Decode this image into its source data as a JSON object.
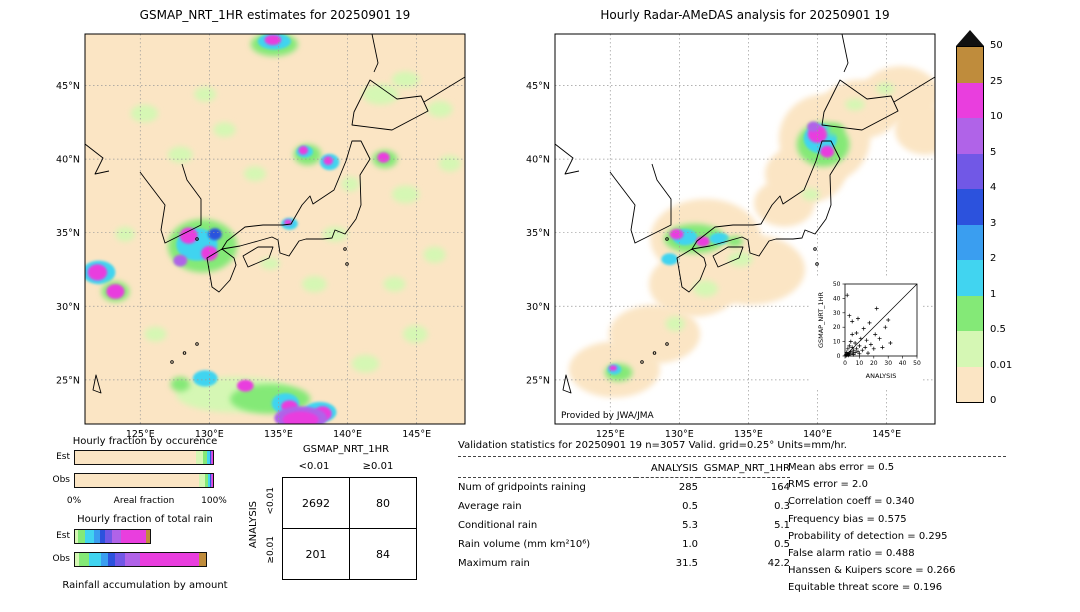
{
  "colorbar": {
    "labels": [
      "50",
      "25",
      "10",
      "5",
      "4",
      "3",
      "2",
      "1",
      "0.5",
      "0.01",
      "0"
    ],
    "segments": [
      "c9",
      "c8",
      "c7",
      "c6",
      "c5",
      "c4",
      "c3",
      "c2",
      "c1",
      "c0"
    ],
    "over_color": "#111111",
    "palette": {
      "c0": "#fbe5c4",
      "c1": "#d5f7b4",
      "c2": "#84e977",
      "c3": "#41d4f0",
      "c4": "#3a9ef0",
      "c5": "#2c52dd",
      "c6": "#7158e6",
      "c7": "#b063e8",
      "c8": "#e93ede",
      "c9": "#bf8c3c"
    }
  },
  "chart_data": {
    "colorbar_levels": [
      0,
      0.01,
      0.5,
      1,
      2,
      3,
      4,
      5,
      10,
      25,
      50
    ],
    "maps": [
      {
        "name": "gsmap",
        "title": "GSMAP_NRT_1HR estimates for 20250901 19",
        "background": "c0",
        "lon_range": [
          121,
          148.5
        ],
        "lat_range": [
          22,
          48.5
        ],
        "lon_ticks": [
          {
            "v": 125,
            "label": "125°E"
          },
          {
            "v": 130,
            "label": "130°E"
          },
          {
            "v": 135,
            "label": "135°E"
          },
          {
            "v": 140,
            "label": "140°E"
          },
          {
            "v": 145,
            "label": "145°E"
          }
        ],
        "lat_ticks": [
          {
            "v": 45,
            "label": "45°N"
          },
          {
            "v": 40,
            "label": "40°N"
          },
          {
            "v": 35,
            "label": "35°N"
          },
          {
            "v": 30,
            "label": "30°N"
          },
          {
            "v": 25,
            "label": "25°N"
          }
        ],
        "regions": [
          [
            125.3,
            43.1,
            1.0,
            0.6,
            "c1"
          ],
          [
            127.9,
            40.3,
            0.9,
            0.55,
            "c1"
          ],
          [
            131.1,
            42.0,
            0.8,
            0.5,
            "c1"
          ],
          [
            139.1,
            34.9,
            0.9,
            0.5,
            "c1"
          ],
          [
            144.2,
            37.6,
            1.0,
            0.6,
            "c1"
          ],
          [
            146.3,
            33.5,
            0.8,
            0.55,
            "c1"
          ],
          [
            144.9,
            28.1,
            0.9,
            0.6,
            "c1"
          ],
          [
            141.3,
            26.1,
            1.0,
            0.6,
            "c1"
          ],
          [
            126.1,
            28.1,
            0.8,
            0.5,
            "c1"
          ],
          [
            123.9,
            34.9,
            0.7,
            0.5,
            "c1"
          ],
          [
            133.3,
            39.0,
            0.8,
            0.5,
            "c1"
          ],
          [
            137.6,
            31.5,
            0.9,
            0.55,
            "c1"
          ],
          [
            143.4,
            31.5,
            0.8,
            0.5,
            "c1"
          ],
          [
            129.7,
            44.4,
            0.8,
            0.5,
            "c1"
          ],
          [
            147.4,
            39.7,
            0.8,
            0.55,
            "c1"
          ],
          [
            142.4,
            44.4,
            1.3,
            0.7,
            "c1"
          ],
          [
            144.2,
            45.4,
            1.0,
            0.55,
            "c1"
          ],
          [
            146.7,
            43.4,
            0.9,
            0.55,
            "c1"
          ],
          [
            140.2,
            38.3,
            0.65,
            0.5,
            "c1"
          ],
          [
            134.4,
            32.9,
            0.7,
            0.4,
            "c1"
          ],
          [
            129.5,
            34.1,
            2.5,
            1.8,
            "c2"
          ],
          [
            129.1,
            34.2,
            1.5,
            1.1,
            "c3"
          ],
          [
            128.5,
            34.8,
            0.65,
            0.55,
            "c8"
          ],
          [
            130.0,
            33.6,
            0.6,
            0.5,
            "c8"
          ],
          [
            127.9,
            33.1,
            0.5,
            0.4,
            "c7"
          ],
          [
            130.4,
            34.9,
            0.5,
            0.4,
            "c5"
          ],
          [
            122.0,
            32.3,
            1.2,
            0.8,
            "c3"
          ],
          [
            121.9,
            32.3,
            0.7,
            0.55,
            "c8"
          ],
          [
            123.2,
            31.0,
            1.0,
            0.7,
            "c2"
          ],
          [
            123.2,
            31.0,
            0.65,
            0.5,
            "c8"
          ],
          [
            134.7,
            47.8,
            1.7,
            0.8,
            "c2"
          ],
          [
            134.7,
            48.0,
            1.2,
            0.55,
            "c3"
          ],
          [
            134.6,
            48.1,
            0.6,
            0.35,
            "c8"
          ],
          [
            137.1,
            40.3,
            1.0,
            0.7,
            "c2"
          ],
          [
            136.9,
            40.5,
            0.6,
            0.4,
            "c3"
          ],
          [
            136.8,
            40.6,
            0.35,
            0.3,
            "c8"
          ],
          [
            138.7,
            39.8,
            0.7,
            0.55,
            "c3"
          ],
          [
            138.6,
            39.9,
            0.35,
            0.3,
            "c8"
          ],
          [
            142.7,
            40.0,
            0.9,
            0.6,
            "c2"
          ],
          [
            142.6,
            40.1,
            0.45,
            0.35,
            "c8"
          ],
          [
            135.8,
            35.6,
            0.6,
            0.4,
            "c3"
          ],
          [
            135.7,
            35.7,
            0.3,
            0.2,
            "c8"
          ],
          [
            131.9,
            24.0,
            4.3,
            1.2,
            "c1"
          ],
          [
            134.4,
            23.7,
            2.9,
            1.0,
            "c2"
          ],
          [
            135.5,
            23.4,
            1.0,
            0.7,
            "c3"
          ],
          [
            135.8,
            23.2,
            0.6,
            0.4,
            "c8"
          ],
          [
            138.0,
            22.8,
            1.2,
            0.7,
            "c3"
          ],
          [
            138.2,
            22.7,
            0.65,
            0.5,
            "c8"
          ],
          [
            132.6,
            24.6,
            0.6,
            0.4,
            "c8"
          ],
          [
            129.7,
            25.1,
            0.9,
            0.55,
            "c3"
          ],
          [
            127.9,
            24.7,
            0.7,
            0.5,
            "c2"
          ],
          [
            136.6,
            22.4,
            1.9,
            0.8,
            "c7"
          ],
          [
            136.6,
            22.3,
            1.3,
            0.55,
            "c8"
          ]
        ]
      },
      {
        "name": "radar_amedas",
        "title": "Hourly Radar-AMeDAS analysis for 20250901 19",
        "background": "#ffffff",
        "credit": "Provided by JWA/JMA",
        "lon_range": [
          121,
          148.5
        ],
        "lat_range": [
          22,
          48.5
        ],
        "lon_ticks": [
          {
            "v": 125,
            "label": "125°E"
          },
          {
            "v": 130,
            "label": "130°E"
          },
          {
            "v": 135,
            "label": "135°E"
          },
          {
            "v": 140,
            "label": "140°E"
          },
          {
            "v": 145,
            "label": "145°E"
          }
        ],
        "lat_ticks": [
          {
            "v": 45,
            "label": "45°N"
          },
          {
            "v": 40,
            "label": "40°N"
          },
          {
            "v": 35,
            "label": "35°N"
          },
          {
            "v": 30,
            "label": "30°N"
          },
          {
            "v": 25,
            "label": "25°N"
          }
        ],
        "regions": [
          [
            125.3,
            25.7,
            3.3,
            1.9,
            "c0"
          ],
          [
            128.2,
            28.1,
            3.3,
            2.0,
            "c0"
          ],
          [
            131.1,
            31.5,
            3.3,
            2.2,
            "c0"
          ],
          [
            131.9,
            34.6,
            4.0,
            2.7,
            "c0"
          ],
          [
            135.1,
            32.5,
            4.0,
            2.4,
            "c0"
          ],
          [
            137.6,
            37.0,
            2.2,
            1.6,
            "c0"
          ],
          [
            139.1,
            39.0,
            2.9,
            2.0,
            "c0"
          ],
          [
            140.5,
            41.4,
            3.3,
            3.0,
            "c0"
          ],
          [
            143.1,
            43.4,
            2.9,
            2.0,
            "c0"
          ],
          [
            146.0,
            44.4,
            2.8,
            1.9,
            "c0"
          ],
          [
            147.8,
            42.0,
            2.2,
            1.7,
            "c0"
          ],
          [
            140.4,
            41.0,
            1.9,
            1.5,
            "c2"
          ],
          [
            140.2,
            41.4,
            1.2,
            1.0,
            "c3"
          ],
          [
            140.0,
            41.7,
            0.7,
            0.6,
            "c8"
          ],
          [
            140.7,
            40.5,
            0.5,
            0.4,
            "c8"
          ],
          [
            139.7,
            42.2,
            0.45,
            0.35,
            "c7"
          ],
          [
            141.3,
            42.0,
            0.6,
            0.4,
            "c2"
          ],
          [
            142.7,
            43.7,
            0.7,
            0.4,
            "c1"
          ],
          [
            144.9,
            44.8,
            0.65,
            0.4,
            "c1"
          ],
          [
            131.1,
            34.6,
            2.2,
            1.0,
            "c2"
          ],
          [
            130.4,
            34.7,
            0.9,
            0.55,
            "c3"
          ],
          [
            129.8,
            34.9,
            0.5,
            0.35,
            "c8"
          ],
          [
            131.7,
            34.4,
            0.5,
            0.35,
            "c8"
          ],
          [
            132.9,
            34.6,
            0.7,
            0.4,
            "c3"
          ],
          [
            134.0,
            34.4,
            0.6,
            0.35,
            "c2"
          ],
          [
            134.4,
            33.2,
            0.9,
            0.5,
            "c1"
          ],
          [
            129.3,
            33.2,
            0.6,
            0.4,
            "c3"
          ],
          [
            125.6,
            25.5,
            1.0,
            0.6,
            "c2"
          ],
          [
            125.3,
            25.7,
            0.5,
            0.35,
            "c3"
          ],
          [
            125.2,
            25.8,
            0.3,
            0.2,
            "c8"
          ],
          [
            131.9,
            31.2,
            0.9,
            0.55,
            "c1"
          ],
          [
            129.7,
            28.8,
            0.7,
            0.5,
            "c1"
          ],
          [
            139.5,
            37.6,
            0.65,
            0.4,
            "c1"
          ]
        ]
      }
    ],
    "inset_scatter": {
      "type": "scatter",
      "xlabel": "ANALYSIS",
      "ylabel": "GSMAP_NRT_1HR",
      "xlim": [
        0,
        50
      ],
      "ylim": [
        0,
        50
      ],
      "ticks": [
        0,
        10,
        20,
        30,
        40,
        50
      ],
      "points": [
        [
          0.3,
          0.2
        ],
        [
          0.6,
          1.2
        ],
        [
          1,
          0.4
        ],
        [
          1.2,
          2.5
        ],
        [
          1.5,
          0.8
        ],
        [
          2,
          1.5
        ],
        [
          2,
          5
        ],
        [
          2.5,
          0.5
        ],
        [
          3,
          2
        ],
        [
          3,
          7
        ],
        [
          3.5,
          1.2
        ],
        [
          4,
          3
        ],
        [
          4,
          10
        ],
        [
          5,
          2
        ],
        [
          5,
          6
        ],
        [
          5,
          24
        ],
        [
          6,
          4
        ],
        [
          6,
          1
        ],
        [
          7,
          9
        ],
        [
          7,
          2.5
        ],
        [
          8,
          5
        ],
        [
          8,
          16
        ],
        [
          9,
          3
        ],
        [
          10,
          7
        ],
        [
          10,
          1.5
        ],
        [
          11,
          12
        ],
        [
          12,
          4
        ],
        [
          13,
          19
        ],
        [
          14,
          6
        ],
        [
          15,
          11
        ],
        [
          16,
          2
        ],
        [
          17,
          23
        ],
        [
          18,
          8
        ],
        [
          20,
          5
        ],
        [
          21,
          15
        ],
        [
          22,
          33
        ],
        [
          24,
          12
        ],
        [
          26,
          6
        ],
        [
          28,
          20
        ],
        [
          30,
          25
        ],
        [
          31.5,
          9
        ],
        [
          1.5,
          42.2
        ],
        [
          3,
          28
        ],
        [
          9,
          26
        ],
        [
          5,
          15
        ]
      ]
    }
  },
  "fractions": {
    "occurrence_title": "Hourly fraction by occurence",
    "total_title": "Hourly fraction of total rain",
    "areal_left": "0%",
    "areal_label": "Areal fraction",
    "areal_right": "100%",
    "accum_label": "Rainfall accumulation by amount",
    "row_labels": {
      "est": "Est",
      "obs": "Obs"
    },
    "occurrence": {
      "est": [
        [
          "c0",
          88
        ],
        [
          "c1",
          5
        ],
        [
          "c2",
          3
        ],
        [
          "c3",
          1.5
        ],
        [
          "c5",
          1
        ],
        [
          "c7",
          0.8
        ],
        [
          "c8",
          0.7
        ]
      ],
      "obs": [
        [
          "c0",
          90
        ],
        [
          "c1",
          4.3
        ],
        [
          "c2",
          2.2
        ],
        [
          "c3",
          1.4
        ],
        [
          "c5",
          0.9
        ],
        [
          "c7",
          0.7
        ],
        [
          "c8",
          0.5
        ]
      ]
    },
    "total": {
      "est": [
        [
          "c1",
          2
        ],
        [
          "c2",
          5
        ],
        [
          "c3",
          7
        ],
        [
          "c4",
          4
        ],
        [
          "c5",
          4
        ],
        [
          "c6",
          5
        ],
        [
          "c7",
          7
        ],
        [
          "c8",
          18
        ],
        [
          "c9",
          3
        ]
      ],
      "obs": [
        [
          "c1",
          3
        ],
        [
          "c2",
          7
        ],
        [
          "c3",
          9
        ],
        [
          "c4",
          5
        ],
        [
          "c5",
          5
        ],
        [
          "c6",
          7
        ],
        [
          "c7",
          11
        ],
        [
          "c8",
          43
        ],
        [
          "c9",
          5
        ]
      ]
    }
  },
  "contingency": {
    "col_header": "GSMAP_NRT_1HR",
    "row_header": "ANALYSIS",
    "col_labels": [
      "<0.01",
      "≥0.01"
    ],
    "row_labels": [
      "<0.01",
      "≥0.01"
    ],
    "values": [
      [
        "2692",
        "80"
      ],
      [
        "201",
        "84"
      ]
    ]
  },
  "validation": {
    "title": "Validation statistics for 20250901 19  n=3057 Valid. grid=0.25° Units=mm/hr.",
    "col_analysis": "ANALYSIS",
    "col_gsmap": "GSMAP_NRT_1HR",
    "rows": [
      {
        "label": "Num of gridpoints raining",
        "analysis": "285",
        "gsmap": "164"
      },
      {
        "label": "Average rain",
        "analysis": "0.5",
        "gsmap": "0.3"
      },
      {
        "label": "Conditional rain",
        "analysis": "5.3",
        "gsmap": "5.1"
      },
      {
        "label": "Rain volume (mm km²10⁶)",
        "analysis": "1.0",
        "gsmap": "0.5"
      },
      {
        "label": "Maximum rain",
        "analysis": "31.5",
        "gsmap": "42.2"
      }
    ],
    "scores": [
      {
        "label": "Mean abs error",
        "value": "0.5"
      },
      {
        "label": "RMS error",
        "value": "2.0"
      },
      {
        "label": "Correlation coeff",
        "value": "0.340"
      },
      {
        "label": "Frequency bias",
        "value": "0.575"
      },
      {
        "label": "Probability of detection",
        "value": "0.295"
      },
      {
        "label": "False alarm ratio",
        "value": "0.488"
      },
      {
        "label": "Hanssen & Kuipers score",
        "value": "0.266"
      },
      {
        "label": "Equitable threat score",
        "value": "0.196"
      }
    ]
  }
}
